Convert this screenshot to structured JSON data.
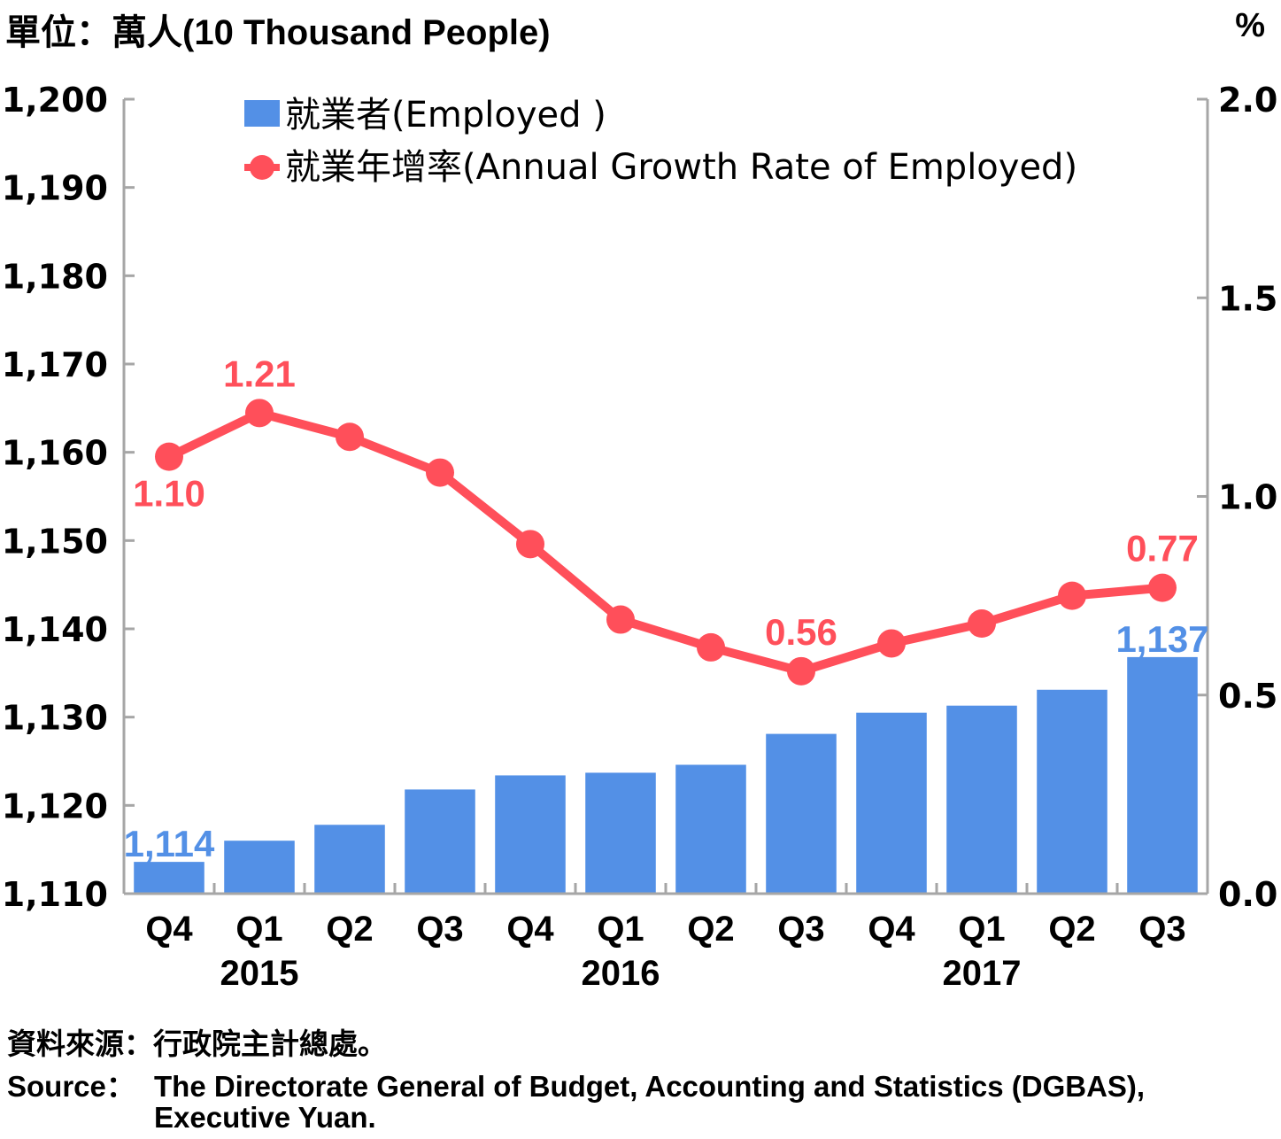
{
  "header": {
    "unit_label": "單位：萬人(10 Thousand People)",
    "right_unit_label": "%"
  },
  "source": {
    "zh": "資料來源：行政院主計總處。",
    "en_label": "Source：",
    "en_line1": "The Directorate General of Budget, Accounting and Statistics (DGBAS),",
    "en_line2": "Executive Yuan."
  },
  "colors": {
    "bar": "#5390E6",
    "line": "#FF4F5A",
    "axis": "#A6A6A6",
    "text": "#000000"
  },
  "chart_data": {
    "type": "bar",
    "title": "",
    "categories": [
      "Q4",
      "Q1",
      "Q2",
      "Q3",
      "Q4",
      "Q1",
      "Q2",
      "Q3",
      "Q4",
      "Q1",
      "Q2",
      "Q3"
    ],
    "year_labels": [
      {
        "label": "2015",
        "category_index": 1
      },
      {
        "label": "2016",
        "category_index": 5
      },
      {
        "label": "2017",
        "category_index": 9
      }
    ],
    "series": [
      {
        "name": "就業者(Employed )",
        "type": "bar",
        "axis": "left",
        "values": [
          1113.6,
          1116.0,
          1117.8,
          1121.8,
          1123.4,
          1123.7,
          1124.6,
          1128.1,
          1130.5,
          1131.3,
          1133.1,
          1136.8
        ],
        "data_labels": [
          {
            "index": 0,
            "text": "1,114"
          },
          {
            "index": 11,
            "text": "1,137"
          }
        ]
      },
      {
        "name": "就業年增率(Annual Growth Rate of Employed)",
        "type": "line",
        "axis": "right",
        "values": [
          1.1,
          1.21,
          1.15,
          1.06,
          0.88,
          0.69,
          0.62,
          0.56,
          0.63,
          0.68,
          0.75,
          0.77
        ],
        "data_labels": [
          {
            "index": 0,
            "text": "1.10",
            "position": "below"
          },
          {
            "index": 1,
            "text": "1.21",
            "position": "above"
          },
          {
            "index": 7,
            "text": "0.56",
            "position": "above"
          },
          {
            "index": 11,
            "text": "0.77",
            "position": "above"
          }
        ]
      }
    ],
    "y_left": {
      "label": "單位：萬人(10 Thousand People)",
      "range": [
        1110,
        1200
      ],
      "ticks": [
        1110,
        1120,
        1130,
        1140,
        1150,
        1160,
        1170,
        1180,
        1190,
        1200
      ],
      "tick_labels": [
        "1,110",
        "1,120",
        "1,130",
        "1,140",
        "1,150",
        "1,160",
        "1,170",
        "1,180",
        "1,190",
        "1,200"
      ]
    },
    "y_right": {
      "label": "%",
      "range": [
        0,
        2.0
      ],
      "ticks": [
        0,
        0.5,
        1.0,
        1.5,
        2.0
      ],
      "tick_labels": [
        "0.0",
        "0.5",
        "1.0",
        "1.5",
        "2.0"
      ]
    },
    "grid": false,
    "legend_position": "top-left"
  }
}
